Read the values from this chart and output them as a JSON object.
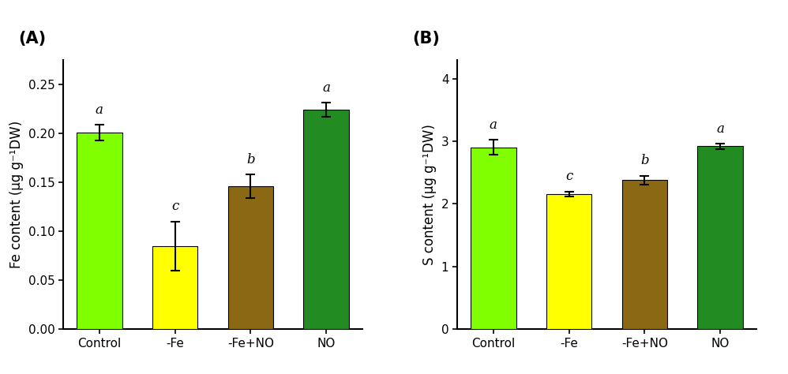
{
  "panel_A": {
    "title": "(A)",
    "ylabel": "Fe content (μg g⁻¹DW)",
    "categories": [
      "Control",
      "-Fe",
      "-Fe+NO",
      "NO"
    ],
    "values": [
      0.201,
      0.085,
      0.146,
      0.224
    ],
    "errors": [
      0.008,
      0.025,
      0.012,
      0.007
    ],
    "colors": [
      "#7FFF00",
      "#FFFF00",
      "#8B6914",
      "#228B22"
    ],
    "letters": [
      "a",
      "c",
      "b",
      "a"
    ],
    "ylim": [
      0,
      0.275
    ],
    "yticks": [
      0.0,
      0.05,
      0.1,
      0.15,
      0.2,
      0.25
    ]
  },
  "panel_B": {
    "title": "(B)",
    "ylabel": "S content (μg g⁻¹DW)",
    "categories": [
      "Control",
      "-Fe",
      "-Fe+NO",
      "NO"
    ],
    "values": [
      2.9,
      2.16,
      2.38,
      2.92
    ],
    "errors": [
      0.12,
      0.04,
      0.07,
      0.04
    ],
    "colors": [
      "#7FFF00",
      "#FFFF00",
      "#8B6914",
      "#228B22"
    ],
    "letters": [
      "a",
      "c",
      "b",
      "a"
    ],
    "ylim": [
      0,
      4.3
    ],
    "yticks": [
      0,
      1,
      2,
      3,
      4
    ]
  },
  "bar_width": 0.6,
  "tick_fontsize": 11,
  "label_fontsize": 12,
  "title_fontsize": 15,
  "letter_fontsize": 12,
  "background_color": "#ffffff",
  "edge_color": "black",
  "error_color": "black",
  "capsize": 4
}
